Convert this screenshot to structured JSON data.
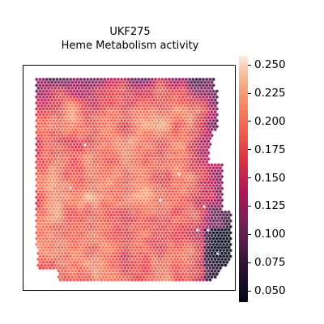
{
  "figure": {
    "title_line1": "UKF275",
    "title_line2": "Heme Metabolism activity"
  },
  "chart_data": {
    "type": "spatial-scatter",
    "title": "UKF275\nHeme Metabolism activity",
    "sample": "UKF275",
    "feature": "Heme Metabolism activity",
    "colormap": "rocket",
    "colorbar": {
      "range": [
        0.04,
        0.258
      ],
      "ticks": [
        0.05,
        0.075,
        0.1,
        0.125,
        0.15,
        0.175,
        0.2,
        0.225,
        0.25
      ],
      "tick_labels": [
        "0.050",
        "0.075",
        "0.100",
        "0.125",
        "0.150",
        "0.175",
        "0.200",
        "0.225",
        "0.250"
      ]
    },
    "approx_value_distribution": {
      "typical": 0.19,
      "high_regions_up_to": 0.25,
      "low_regions": [
        "top band",
        "right edge",
        "lower-right corner"
      ],
      "low_min": 0.045
    },
    "axes_visible": false,
    "grid": false
  }
}
